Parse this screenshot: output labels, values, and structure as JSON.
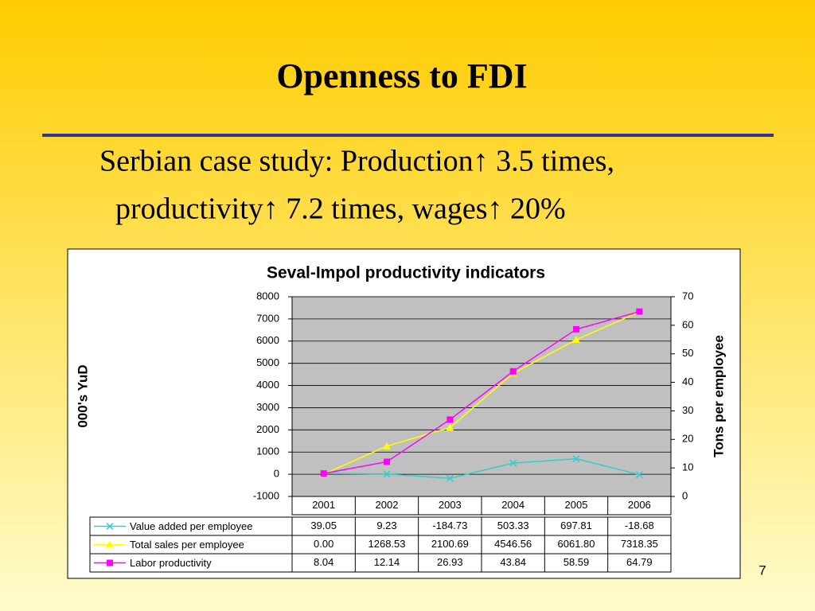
{
  "slide": {
    "title": "Openness to FDI",
    "subtitle_lines": [
      "Serbian case study: Production↑ 3.5 times,",
      "productivity↑ 7.2 times, wages↑ 20%"
    ],
    "page_number": "7"
  },
  "chart_data": {
    "type": "line",
    "title": "Seval-Impol productivity indicators",
    "y_label": "000's YuD",
    "y2_label": "Tons per employee",
    "categories": [
      "2001",
      "2002",
      "2003",
      "2004",
      "2005",
      "2006"
    ],
    "ylim": [
      -1000,
      8000
    ],
    "yticks": [
      -1000,
      0,
      1000,
      2000,
      3000,
      4000,
      5000,
      6000,
      7000,
      8000
    ],
    "y2lim": [
      0,
      70
    ],
    "y2ticks": [
      0,
      10,
      20,
      30,
      40,
      50,
      60,
      70
    ],
    "plot_background": "#c0c0c0",
    "series": [
      {
        "name": "Value added per employee",
        "color": "#33cccc",
        "marker": "x",
        "values": [
          39.05,
          9.23,
          -184.73,
          503.33,
          697.81,
          -18.68
        ],
        "value_labels": [
          "39.05",
          "9.23",
          "-184.73",
          "503.33",
          "697.81",
          "-18.68"
        ]
      },
      {
        "name": "Total sales per employee",
        "color": "#ffff00",
        "marker": "triangle",
        "values": [
          0,
          1268.53,
          2100.69,
          4546.56,
          6061.8,
          7318.35
        ],
        "value_labels": [
          "0.00",
          "1268.53",
          "2100.69",
          "4546.56",
          "6061.80",
          "7318.35"
        ]
      },
      {
        "name": "Labor productivity",
        "color": "#ff00ff",
        "marker": "square",
        "axis": "y2",
        "values": [
          8.04,
          12.14,
          26.93,
          43.84,
          58.59,
          64.79
        ],
        "value_labels": [
          "8.04",
          "12.14",
          "26.93",
          "43.84",
          "58.59",
          "64.79"
        ]
      }
    ]
  }
}
